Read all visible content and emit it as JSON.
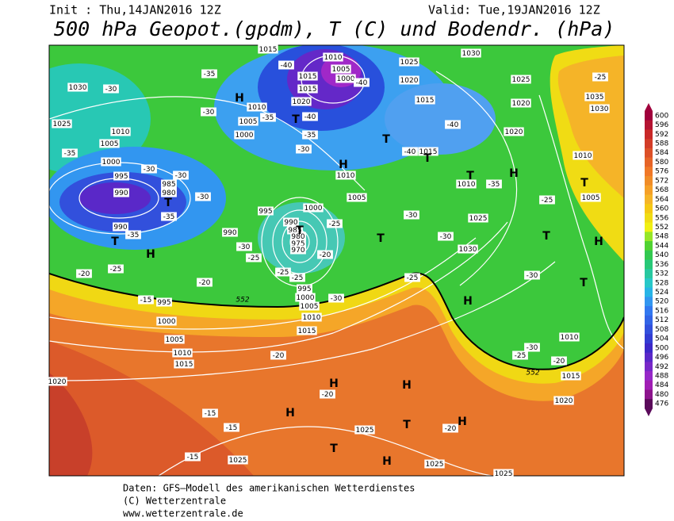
{
  "header": {
    "init": "Init : Thu,14JAN2016 12Z",
    "valid": "Valid: Tue,19JAN2016 12Z",
    "title": "500 hPa Geopot.(gpdm), T (C) und Bodendr. (hPa)"
  },
  "map": {
    "isobar_labels": [
      "1030",
      "1025",
      "1010",
      "1005",
      "1000",
      "995",
      "990",
      "985",
      "980",
      "990",
      "995",
      "1000",
      "1005",
      "1010",
      "1015",
      "1020",
      "990",
      "995",
      "1000",
      "1005",
      "1010",
      "1015",
      "1015",
      "1015",
      "1020",
      "1010",
      "1005",
      "1000",
      "1025",
      "1020",
      "1030",
      "1025",
      "1020",
      "1015",
      "1020",
      "1015",
      "1010",
      "1005",
      "1000",
      "990",
      "985",
      "980",
      "975",
      "970",
      "995",
      "1000",
      "1005",
      "1010",
      "1015",
      "1010",
      "1025",
      "1030",
      "1035",
      "1030",
      "1010",
      "1005",
      "1010",
      "1015",
      "1020",
      "1025",
      "1025",
      "1025",
      "1025"
    ],
    "temperature_labels": [
      "-30",
      "-35",
      "-30",
      "-30",
      "-35",
      "-35",
      "-25",
      "-20",
      "-30",
      "-30",
      "-25",
      "-25",
      "-25",
      "-20",
      "-15",
      "-35",
      "-30",
      "-40",
      "-35",
      "-30",
      "-35",
      "-40",
      "-40",
      "-40",
      "-40",
      "-35",
      "-30",
      "-30",
      "-25",
      "-20",
      "-30",
      "-25",
      "-20",
      "-20",
      "-15",
      "-15",
      "-15",
      "-20",
      "-25",
      "-30",
      "-30",
      "-25",
      "-20",
      "-25"
    ],
    "contour_labels": [
      "552",
      "552"
    ],
    "pressure_centers": [
      "H",
      "H",
      "H",
      "H",
      "H",
      "H",
      "H",
      "H",
      "H",
      "H",
      "H",
      "T",
      "T",
      "T",
      "T",
      "T",
      "T",
      "T",
      "T",
      "T",
      "T",
      "T",
      "T",
      "T"
    ]
  },
  "colorbar": {
    "levels": [
      600,
      596,
      592,
      588,
      584,
      580,
      576,
      572,
      568,
      564,
      560,
      556,
      552,
      548,
      544,
      540,
      536,
      532,
      528,
      524,
      520,
      516,
      512,
      508,
      504,
      500,
      496,
      492,
      488,
      484,
      480,
      476
    ],
    "colors": [
      "#a0003c",
      "#b41432",
      "#c82828",
      "#d23c28",
      "#dc5028",
      "#e66428",
      "#f07828",
      "#f08c28",
      "#f5a028",
      "#f5b428",
      "#f5c814",
      "#f0dc14",
      "#f0f014",
      "#96e628",
      "#50d232",
      "#32c850",
      "#28c878",
      "#28c8a0",
      "#28c8c8",
      "#28b4e6",
      "#3296f0",
      "#3278f0",
      "#3264e6",
      "#3250dc",
      "#323cd2",
      "#3c28c8",
      "#5a28c8",
      "#7828c8",
      "#9628c8",
      "#a01eb4",
      "#8c148c",
      "#5a0a5a"
    ]
  },
  "footer": {
    "lines": [
      "Daten: GFS–Modell des amerikanischen Wetterdienstes",
      "(C) Wetterzentrale",
      "www.wetterzentrale.de"
    ]
  }
}
